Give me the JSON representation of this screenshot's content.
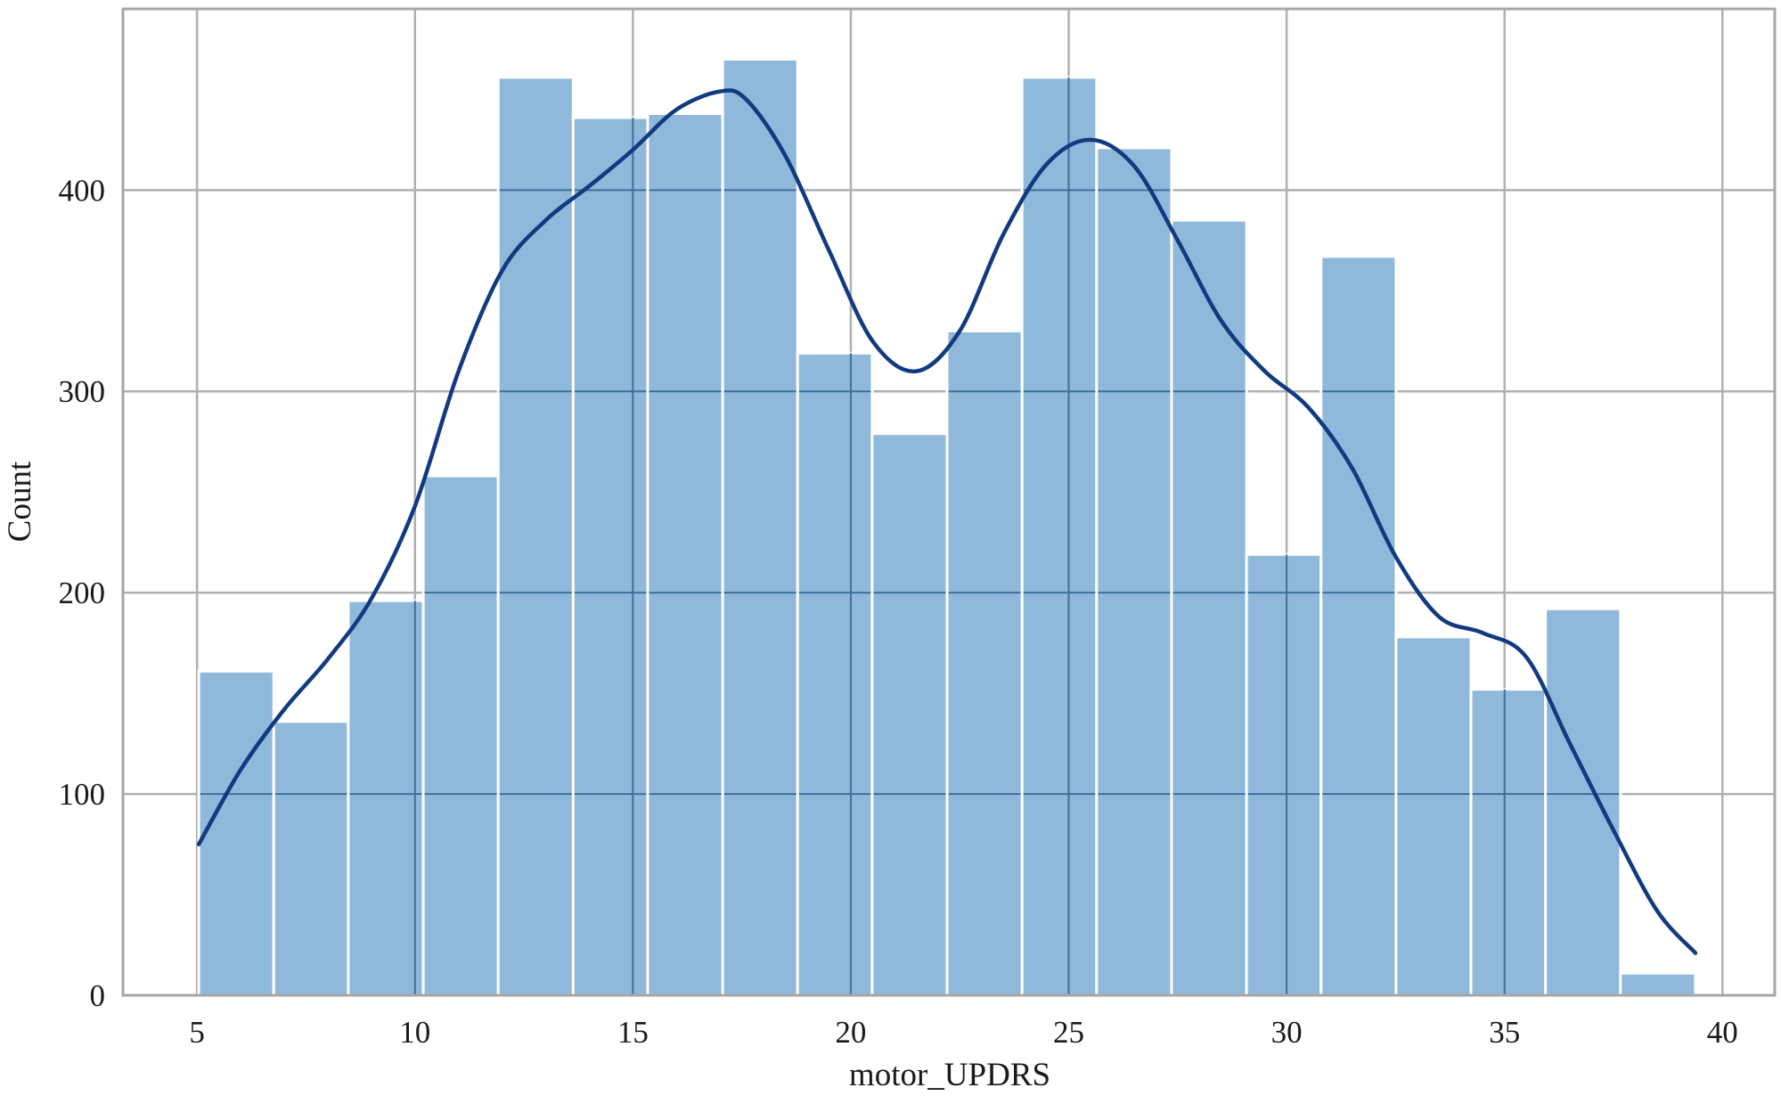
{
  "chart_data": {
    "type": "bar",
    "subtype": "histogram-with-kde",
    "title": "",
    "xlabel": "motor_UPDRS",
    "ylabel": "Count",
    "xlim": [
      3.3,
      41.2
    ],
    "ylim": [
      0,
      490
    ],
    "xticks": [
      5,
      10,
      15,
      20,
      25,
      30,
      35,
      40
    ],
    "yticks": [
      0,
      100,
      200,
      300,
      400
    ],
    "grid": true,
    "bins": [
      {
        "x0": 5.04,
        "x1": 6.76,
        "count": 161
      },
      {
        "x0": 6.76,
        "x1": 8.47,
        "count": 136
      },
      {
        "x0": 8.47,
        "x1": 10.19,
        "count": 196
      },
      {
        "x0": 10.19,
        "x1": 11.91,
        "count": 258
      },
      {
        "x0": 11.91,
        "x1": 13.63,
        "count": 456
      },
      {
        "x0": 13.63,
        "x1": 15.34,
        "count": 436
      },
      {
        "x0": 15.34,
        "x1": 17.06,
        "count": 438
      },
      {
        "x0": 17.06,
        "x1": 18.78,
        "count": 465
      },
      {
        "x0": 18.78,
        "x1": 20.49,
        "count": 319
      },
      {
        "x0": 20.49,
        "x1": 22.21,
        "count": 279
      },
      {
        "x0": 22.21,
        "x1": 23.93,
        "count": 330
      },
      {
        "x0": 23.93,
        "x1": 25.64,
        "count": 456
      },
      {
        "x0": 25.64,
        "x1": 27.36,
        "count": 421
      },
      {
        "x0": 27.36,
        "x1": 29.08,
        "count": 385
      },
      {
        "x0": 29.08,
        "x1": 30.79,
        "count": 219
      },
      {
        "x0": 30.79,
        "x1": 32.51,
        "count": 367
      },
      {
        "x0": 32.51,
        "x1": 34.23,
        "count": 178
      },
      {
        "x0": 34.23,
        "x1": 35.94,
        "count": 152
      },
      {
        "x0": 35.94,
        "x1": 37.66,
        "count": 192
      },
      {
        "x0": 37.66,
        "x1": 39.38,
        "count": 11
      }
    ],
    "kde": {
      "x": [
        5.04,
        6.0,
        7.0,
        8.0,
        9.0,
        10.0,
        11.0,
        12.0,
        13.0,
        14.0,
        15.0,
        16.0,
        17.0,
        17.6,
        18.5,
        19.5,
        20.5,
        21.5,
        22.5,
        23.5,
        24.5,
        25.5,
        26.5,
        27.5,
        28.5,
        29.5,
        30.5,
        31.5,
        32.5,
        33.5,
        34.5,
        35.5,
        36.5,
        37.5,
        38.5,
        39.38
      ],
      "y": [
        75,
        112,
        142,
        167,
        197,
        243,
        310,
        360,
        385,
        402,
        420,
        440,
        449,
        445,
        417,
        370,
        325,
        310,
        330,
        378,
        413,
        425,
        412,
        375,
        335,
        310,
        292,
        262,
        218,
        188,
        180,
        168,
        125,
        82,
        42,
        21
      ]
    },
    "colors": {
      "bar_fill": "#8fb8db",
      "bar_edge": "#ffffff",
      "kde_line": "#123a80",
      "grid": "#b0b0b0",
      "axes": "#a6a6a6"
    }
  }
}
